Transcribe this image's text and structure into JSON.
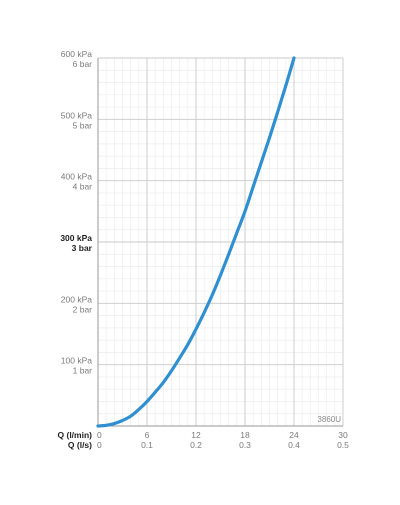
{
  "chart_data": {
    "type": "line",
    "title": "",
    "model_code": "3860U",
    "x_primary": {
      "label": "Q (l/min)",
      "ticks": [
        "0",
        "6",
        "12",
        "18",
        "24",
        "30"
      ],
      "range": [
        0,
        30
      ]
    },
    "x_secondary": {
      "label": "Q (l/s)",
      "ticks": [
        "0",
        "0.1",
        "0.2",
        "0.3",
        "0.4",
        "0.5"
      ],
      "range": [
        0,
        0.5
      ]
    },
    "y": {
      "range": [
        0,
        600
      ],
      "unit": "kPa",
      "ticks": [
        {
          "value": 100,
          "kpa": "100 kPa",
          "bar": "1 bar",
          "emphasis": false
        },
        {
          "value": 200,
          "kpa": "200 kPa",
          "bar": "2 bar",
          "emphasis": false
        },
        {
          "value": 300,
          "kpa": "300 kPa",
          "bar": "3 bar",
          "emphasis": true
        },
        {
          "value": 400,
          "kpa": "400 kPa",
          "bar": "4 bar",
          "emphasis": false
        },
        {
          "value": 500,
          "kpa": "500 kPa",
          "bar": "5 bar",
          "emphasis": false
        },
        {
          "value": 600,
          "kpa": "600 kPa",
          "bar": "6 bar",
          "emphasis": false
        }
      ]
    },
    "grid": {
      "major": true,
      "minor": true
    },
    "series": [
      {
        "color": "#2f8fd0",
        "x": [
          0,
          1,
          2,
          3,
          4,
          5,
          6,
          7,
          8,
          9,
          10,
          11,
          12,
          13,
          14,
          15,
          16,
          17,
          18,
          19,
          20,
          21,
          22,
          23,
          24
        ],
        "y": [
          0,
          1,
          4,
          9,
          16,
          27,
          40,
          55,
          71,
          90,
          111,
          133,
          158,
          185,
          214,
          246,
          280,
          315,
          350,
          390,
          430,
          470,
          512,
          555,
          600
        ]
      }
    ]
  }
}
